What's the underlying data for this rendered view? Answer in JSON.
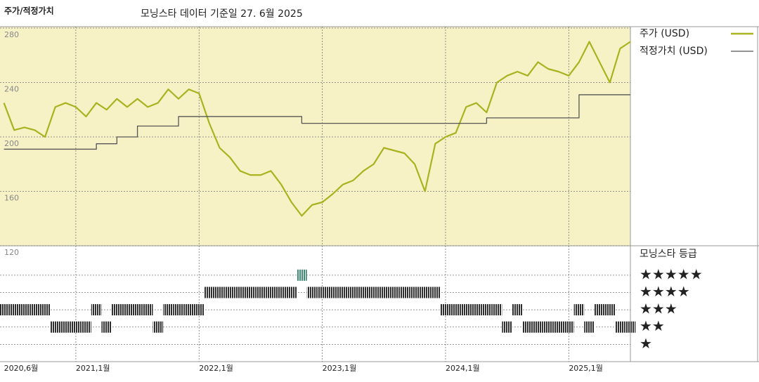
{
  "chart_data": [
    {
      "type": "line",
      "title": "주가/적정가치",
      "subtitle": "모닝스타 데이터 기준일 27. 6월 2025",
      "categories": [
        "2020,6월",
        null,
        null,
        null,
        null,
        null,
        null,
        "2021,1월",
        null,
        null,
        null,
        null,
        null,
        null,
        null,
        null,
        null,
        null,
        null,
        "2022,1월",
        null,
        null,
        null,
        null,
        null,
        null,
        null,
        null,
        null,
        null,
        null,
        "2023,1월",
        null,
        null,
        null,
        null,
        null,
        null,
        null,
        null,
        null,
        null,
        null,
        "2024,1월",
        null,
        null,
        null,
        null,
        null,
        null,
        null,
        null,
        null,
        null,
        null,
        "2025,1월",
        null,
        null,
        null,
        null,
        null,
        null
      ],
      "series": [
        {
          "name": "주가 (USD)",
          "color": "#a9b21f",
          "values": [
            225,
            205,
            207,
            205,
            200,
            222,
            225,
            222,
            215,
            225,
            220,
            228,
            222,
            228,
            222,
            225,
            235,
            228,
            235,
            232,
            210,
            192,
            185,
            175,
            172,
            172,
            175,
            165,
            152,
            142,
            150,
            152,
            158,
            165,
            168,
            175,
            180,
            192,
            190,
            188,
            180,
            160,
            195,
            200,
            203,
            222,
            225,
            218,
            240,
            245,
            248,
            245,
            255,
            250,
            248,
            245,
            255,
            270,
            255,
            240,
            265,
            270
          ]
        },
        {
          "name": "적정가치 (USD)",
          "color": "#555555",
          "step": true,
          "values": [
            191,
            191,
            191,
            191,
            191,
            191,
            191,
            191,
            191,
            195,
            195,
            200,
            200,
            208,
            208,
            208,
            208,
            215,
            215,
            215,
            215,
            215,
            215,
            215,
            215,
            215,
            215,
            215,
            215,
            210,
            210,
            210,
            210,
            210,
            210,
            210,
            210,
            210,
            210,
            210,
            210,
            210,
            210,
            210,
            210,
            210,
            210,
            214,
            214,
            214,
            214,
            214,
            214,
            214,
            214,
            214,
            231,
            231,
            231,
            231,
            231,
            231
          ]
        }
      ],
      "ylim": [
        120,
        280
      ],
      "yticks": [
        120,
        160,
        200,
        240,
        280
      ],
      "grid": true,
      "background": "#f7f2c6"
    },
    {
      "type": "rating",
      "title": "모닝스타 등급",
      "color": "#2e2e2e",
      "top_color": "#3d8a70",
      "values": [
        3,
        3,
        3,
        3,
        3,
        2,
        2,
        2,
        2,
        3,
        2,
        3,
        3,
        3,
        3,
        2,
        3,
        3,
        3,
        3,
        4,
        4,
        4,
        4,
        4,
        4,
        4,
        4,
        4,
        5,
        4,
        4,
        4,
        4,
        4,
        4,
        4,
        4,
        4,
        4,
        4,
        4,
        4,
        3,
        3,
        3,
        3,
        3,
        3,
        2,
        3,
        2,
        2,
        2,
        2,
        2,
        3,
        2,
        3,
        3,
        2,
        2
      ],
      "ylim": [
        0,
        6.7
      ],
      "yticks": [
        {
          "value": 5,
          "label": "★★★★★"
        },
        {
          "value": 4,
          "label": "★★★★"
        },
        {
          "value": 3,
          "label": "★★★"
        },
        {
          "value": 2,
          "label": "★★"
        },
        {
          "value": 1,
          "label": "★"
        }
      ]
    }
  ]
}
